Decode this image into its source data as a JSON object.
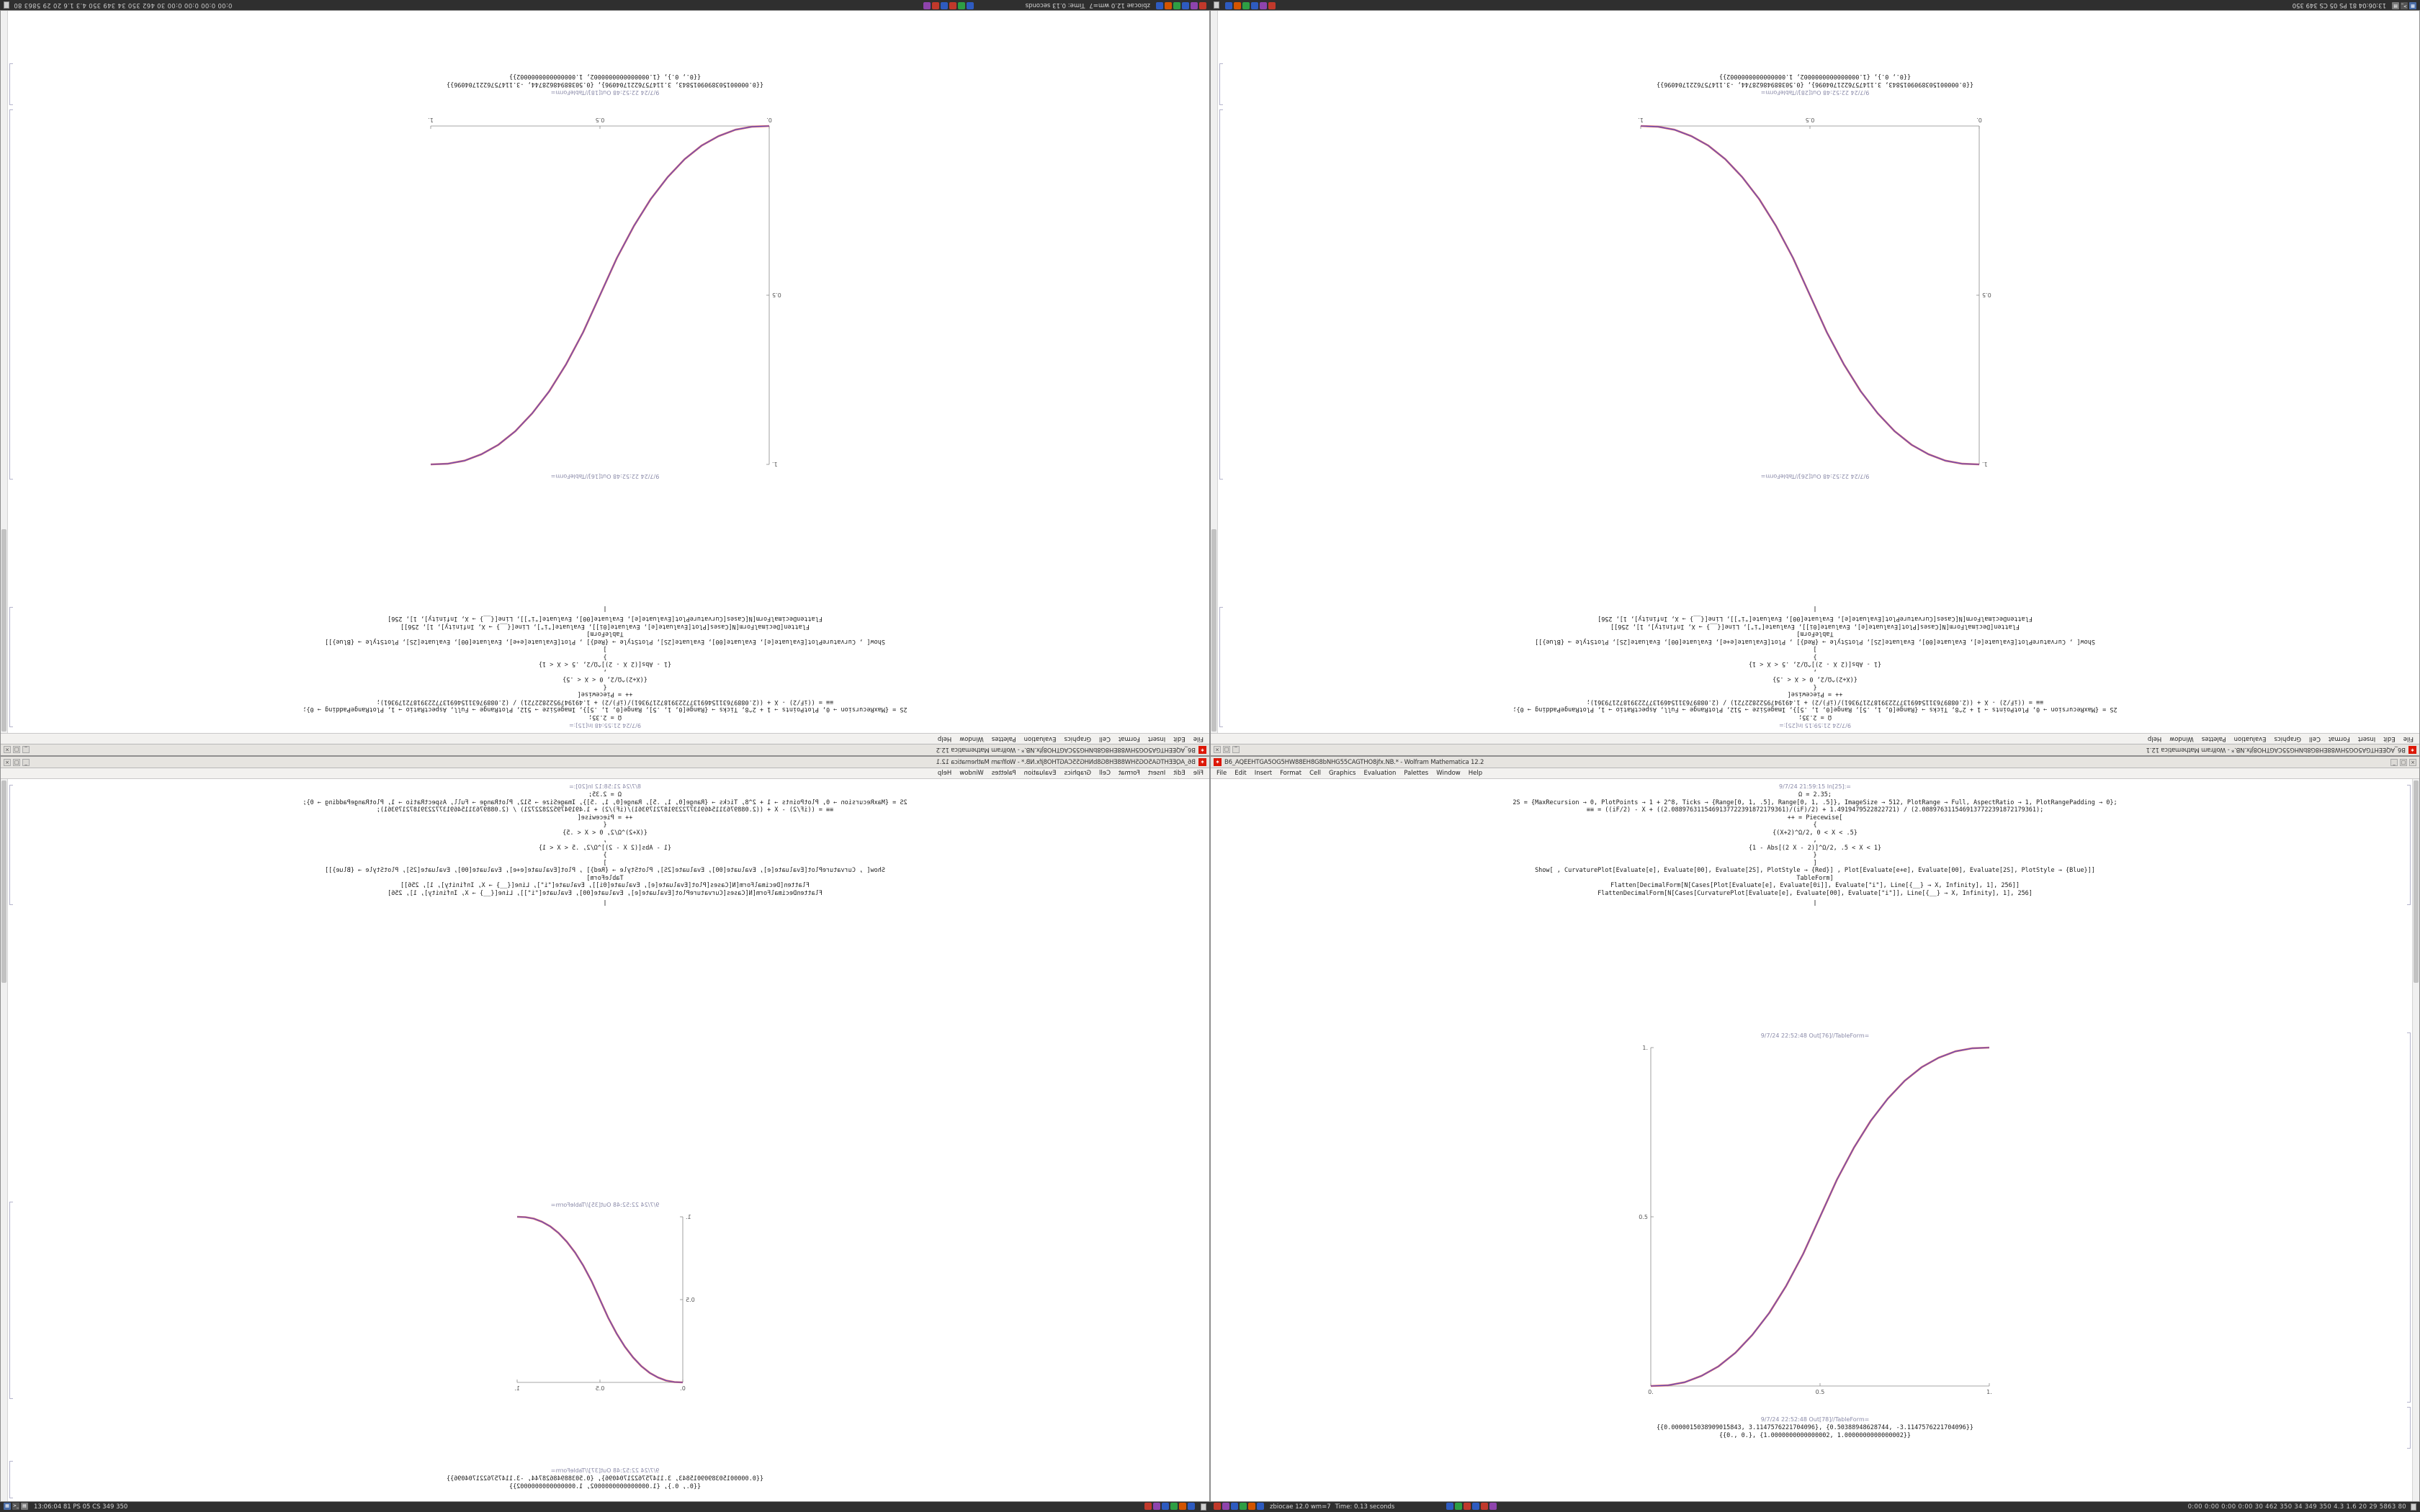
{
  "desktop": {
    "bg": "#9a9a9a"
  },
  "window_chrome": {
    "icon_glyph": "✶",
    "minimize_glyph": "_",
    "maximize_glyph": "□",
    "close_glyph": "×",
    "divider_glyph": "‖"
  },
  "menu": [
    "File",
    "Edit",
    "Insert",
    "Format",
    "Cell",
    "Graphics",
    "Evaluation",
    "Palettes",
    "Window",
    "Help"
  ],
  "notebook_code": [
    "Ω = 2.35;",
    "2S = {MaxRecursion → 0, PlotPoints → 1 + 2^8, Ticks → {Range[0, 1, .5], Range[0, 1, .5]}, ImageSize → 512, PlotRange → Full, AspectRatio → 1, PlotRangePadding → 0};",
    "≡≡ = ((iF/2) - X + ((2.0889763115469137722391872179361)/(iF)/2) + 1.4919479522822721) / (2.0889763115469137722391872179361);",
    "++ = Piecewise[",
    "{",
    "{(X+2)^Ω/2, 0 < X < .5}",
    ",",
    "{1 - Abs[(2 X - 2)]^Ω/2, .5 < X < 1}",
    "}",
    "]",
    "Show[ , CurvaturePlot[Evaluate[e], Evaluate[00], Evaluate[2S], PlotStyle → {Red}] ,  Plot[Evaluate[e+e], Evaluate[00], Evaluate[2S], PlotStyle → {Blue}]]",
    "TableForm]",
    "Flatten[DecimalForm[N[Cases[Plot[Evaluate[e], Evaluate[0i]], Evaluate[\"i\"], Line[{__} → X, Infinity], 1], 256]]",
    "FlattenDecimalForm[N[Cases[CurvaturePlot[Evaluate[e], Evaluate[00], Evaluate[\"i\"]], Line[{__} → X, Infinity], 1], 256]"
  ],
  "windows": [
    {
      "id": "top-left",
      "orientation": "rotated-180",
      "title": "B6_AQEEHTGA5OG5HW88EH8G8bNHG55CAGTHO8jfx.NB.* - Wolfram Mathematica 12.2",
      "in_label": "9/7/24 21:55:48 In[15]:=",
      "out1_label": "9/7/24 22:52:48 Out[16]//TableForm=",
      "out2_label": "9/7/24 22:52:48 Out[18]//TableForm=",
      "result1": "{{0.0000015038909015843, 3.1147576221704096}, {0.50388948628744, -3.1147576221704096}}",
      "result2": "{{0., 0.}, {1.0000000000000002, 1.0000000000000002}}",
      "plot": {
        "curve": "ascending",
        "size": 470
      }
    },
    {
      "id": "top-right",
      "orientation": "rotated-180",
      "title": "B6_AQEEHTGA5OG5HW88EH8G8bNHG55CAGTHO8jfx.NB.* - Wolfram Mathematica 12.1",
      "in_label": "9/7/24 21:59:15 In[25]:=",
      "out1_label": "9/7/24 22:52:48 Out[26]//TableForm=",
      "out2_label": "9/7/24 22:52:48 Out[28]//TableForm=",
      "result1": "{{0.0000015038909015843, 3.1147576221704096}, {0.50388948628744, -3.1147576221704096}}",
      "result2": "{{0., 0.}, {1.0000000000000002, 1.0000000000000002}}",
      "plot": {
        "curve": "descending",
        "size": 470
      }
    },
    {
      "id": "bottom-left",
      "orientation": "mirrored-horizontal",
      "title": "B6_AQEEHTGA5OG5HW88EH8G8bNHG55CAGTHO8jfx.NB.* - Wolfram Mathematica 12.1",
      "in_label": "8/7/24 21:58:12 In[20]:=",
      "out1_label": "9/7/24 22:52:48 Out[35]//TableForm=",
      "out2_label": "9/7/24 22:52:48 Out[37]//TableForm=",
      "result1": "{{0.0000015038909015843, 3.1147576221704096}, {0.50388948628744, -3.1147576221704096}}",
      "result2": "{{0., 0.}, {1.0000000000000002, 1.0000000000000002}}",
      "plot": {
        "curve": "ascending",
        "size": 230
      }
    },
    {
      "id": "bottom-right",
      "orientation": "normal",
      "title": "B6_AQEEHTGA5OG5HW88EH8G8bNHG55CAGTHO8jfx.NB.* - Wolfram Mathematica 12.2",
      "in_label": "9/7/24 21:59:15 In[25]:=",
      "out1_label": "9/7/24 22:52:48 Out[76]//TableForm=",
      "out2_label": "9/7/24 22:52:48 Out[78]//TableForm=",
      "result1": "{{0.0000015038909015843, 3.1147576221704096}, {0.50388948628744, -3.1147576221704096}}",
      "result2": "{{0., 0.}, {1.0000000000000002, 1.0000000000000002}}",
      "plot": {
        "curve": "ascending",
        "size": 470
      }
    }
  ],
  "panels": {
    "left": {
      "launchers": [
        {
          "name": "applications-menu-icon",
          "glyph": "▦",
          "color": "#4a6da7"
        },
        {
          "name": "terminal-icon",
          "glyph": ">_",
          "color": "#555555"
        },
        {
          "name": "file-manager-icon",
          "glyph": "▤",
          "color": "#7a7a7a"
        }
      ],
      "status_text": "13:06:04 81 PS 05 CS 349 350",
      "tray_colors": [
        "#c0392b",
        "#8e44ad",
        "#2e5bc0",
        "#2e9e44",
        "#d35400",
        "#2e5bc0"
      ]
    },
    "right": {
      "tray_colors_a": [
        "#c0392b",
        "#8e44ad",
        "#2e5bc0",
        "#2e9e44",
        "#d35400",
        "#2e5bc0"
      ],
      "task_label": "zbiocae 12.0 wm=7",
      "time_label": "Time: 0.13 seconds",
      "tray_colors_b": [
        "#2e5bc0",
        "#2e9e44",
        "#c0392b",
        "#2e5bc0",
        "#c0392b",
        "#8e44ad"
      ],
      "stats_text": "0:00 0:00 0:00 0:00 30 462 350 34 349 350 4.3 1.6 20 29 5863 80"
    }
  },
  "chart_data": {
    "type": "line",
    "title": "",
    "xlabel": "",
    "ylabel": "",
    "xlim": [
      0,
      1
    ],
    "ylim": [
      0,
      1
    ],
    "xticks": [
      "0.",
      "0.5",
      "1."
    ],
    "yticks": [
      "0.5",
      "1."
    ],
    "grid": false,
    "legend": false,
    "description": "Piecewise smoothstep sigmoid f(x)=(2x)^Ω/2 for 0<x<.5 and 1-(2-2x)^Ω/2 for .5<x<1, Ω=2.35; red (CurvaturePlot) and blue (Plot) curves overlap appearing magenta. Four notebook windows show the curve: top-left ascending (rotated 180°), top-right descending (rotated 180°), bottom-left ascending (mirrored, appears descending), bottom-right ascending (normal).",
    "series_colors": {
      "red": "#d54a4a",
      "blue": "#4a4ad5"
    },
    "curves": {
      "ascending": [
        [
          0,
          0
        ],
        [
          0.05,
          0.002
        ],
        [
          0.1,
          0.011
        ],
        [
          0.15,
          0.03
        ],
        [
          0.2,
          0.058
        ],
        [
          0.25,
          0.098
        ],
        [
          0.3,
          0.151
        ],
        [
          0.35,
          0.216
        ],
        [
          0.4,
          0.296
        ],
        [
          0.45,
          0.39
        ],
        [
          0.5,
          0.5
        ],
        [
          0.55,
          0.61
        ],
        [
          0.6,
          0.704
        ],
        [
          0.65,
          0.784
        ],
        [
          0.7,
          0.849
        ],
        [
          0.75,
          0.902
        ],
        [
          0.8,
          0.942
        ],
        [
          0.85,
          0.97
        ],
        [
          0.9,
          0.989
        ],
        [
          0.95,
          0.998
        ],
        [
          1,
          1
        ]
      ],
      "descending": [
        [
          0,
          1
        ],
        [
          0.05,
          0.998
        ],
        [
          0.1,
          0.989
        ],
        [
          0.15,
          0.97
        ],
        [
          0.2,
          0.942
        ],
        [
          0.25,
          0.902
        ],
        [
          0.3,
          0.849
        ],
        [
          0.35,
          0.784
        ],
        [
          0.4,
          0.704
        ],
        [
          0.45,
          0.61
        ],
        [
          0.5,
          0.5
        ],
        [
          0.55,
          0.39
        ],
        [
          0.6,
          0.296
        ],
        [
          0.65,
          0.216
        ],
        [
          0.7,
          0.151
        ],
        [
          0.75,
          0.098
        ],
        [
          0.8,
          0.058
        ],
        [
          0.85,
          0.03
        ],
        [
          0.9,
          0.011
        ],
        [
          0.95,
          0.002
        ],
        [
          1,
          0
        ]
      ]
    }
  }
}
